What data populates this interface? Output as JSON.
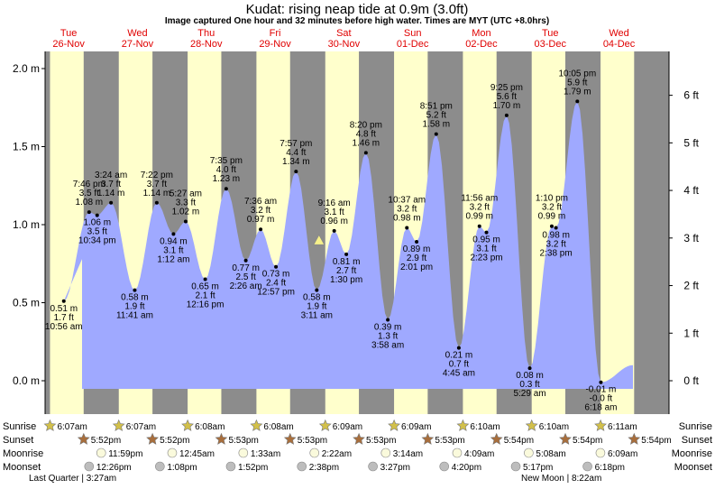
{
  "chart_data": {
    "type": "area",
    "title": "Kudat: rising  neap tide at 0.9m (3.0ft)",
    "subtitle": "Image captured One hour and 32 minutes before high water. Times are MYT (UTC +8.0hrs)",
    "ylabel_left_unit": "m",
    "ylabel_right_unit": "ft",
    "ylim_m": [
      -0.15,
      2.08
    ],
    "yticks_m": [
      "2.0 m",
      "1.5 m",
      "1.0 m",
      "0.5 m",
      "0.0 m"
    ],
    "yticks_ft": [
      "6 ft",
      "5 ft",
      "4 ft",
      "3 ft",
      "2 ft",
      "1 ft",
      "0 ft"
    ],
    "days": [
      {
        "name": "Tue",
        "date": "26-Nov"
      },
      {
        "name": "Wed",
        "date": "27-Nov"
      },
      {
        "name": "Thu",
        "date": "28-Nov"
      },
      {
        "name": "Fri",
        "date": "29-Nov"
      },
      {
        "name": "Sat",
        "date": "30-Nov"
      },
      {
        "name": "Sun",
        "date": "01-Dec"
      },
      {
        "name": "Mon",
        "date": "02-Dec"
      },
      {
        "name": "Tue",
        "date": "03-Dec"
      },
      {
        "name": "Wed",
        "date": "04-Dec"
      }
    ],
    "grid": true,
    "tides": [
      {
        "type": "low",
        "day": 0,
        "time": "10:56 am",
        "m": "0.51 m",
        "ft": "1.7 ft",
        "val": 0.51
      },
      {
        "type": "high",
        "day": 0,
        "time": "7:46 pm",
        "m": "1.08 m",
        "ft": "3.5 ft",
        "val": 1.08
      },
      {
        "type": "low",
        "day": 0,
        "time": "10:34 pm",
        "m": "1.06 m",
        "ft": "3.5 ft",
        "val": 1.06
      },
      {
        "type": "high",
        "day": 1,
        "time": "3:24 am",
        "m": "1.14 m",
        "ft": "3.7 ft",
        "val": 1.14
      },
      {
        "type": "low",
        "day": 1,
        "time": "11:41 am",
        "m": "0.58 m",
        "ft": "1.9 ft",
        "val": 0.58
      },
      {
        "type": "high",
        "day": 1,
        "time": "7:22 pm",
        "m": "1.14 m",
        "ft": "3.7 ft",
        "val": 1.14
      },
      {
        "type": "low",
        "day": 2,
        "time": "1:12 am",
        "m": "0.94 m",
        "ft": "3.1 ft",
        "val": 0.94
      },
      {
        "type": "high",
        "day": 2,
        "time": "5:27 am",
        "m": "1.02 m",
        "ft": "3.3 ft",
        "val": 1.02
      },
      {
        "type": "low",
        "day": 2,
        "time": "12:16 pm",
        "m": "0.65 m",
        "ft": "2.1 ft",
        "val": 0.65
      },
      {
        "type": "high",
        "day": 2,
        "time": "7:35 pm",
        "m": "1.23 m",
        "ft": "4.0 ft",
        "val": 1.23
      },
      {
        "type": "low",
        "day": 3,
        "time": "2:26 am",
        "m": "0.77 m",
        "ft": "2.5 ft",
        "val": 0.77
      },
      {
        "type": "high",
        "day": 3,
        "time": "7:36 am",
        "m": "0.97 m",
        "ft": "3.2 ft",
        "val": 0.97
      },
      {
        "type": "low",
        "day": 3,
        "time": "12:57 pm",
        "m": "0.73 m",
        "ft": "2.4 ft",
        "val": 0.73
      },
      {
        "type": "high",
        "day": 3,
        "time": "7:57 pm",
        "m": "1.34 m",
        "ft": "4.4 ft",
        "val": 1.34
      },
      {
        "type": "low",
        "day": 4,
        "time": "3:11 am",
        "m": "0.58 m",
        "ft": "1.9 ft",
        "val": 0.58
      },
      {
        "type": "high",
        "day": 4,
        "time": "9:16 am",
        "m": "0.96 m",
        "ft": "3.1 ft",
        "val": 0.96
      },
      {
        "type": "low",
        "day": 4,
        "time": "1:30 pm",
        "m": "0.81 m",
        "ft": "2.7 ft",
        "val": 0.81
      },
      {
        "type": "high",
        "day": 4,
        "time": "8:20 pm",
        "m": "1.46 m",
        "ft": "4.8 ft",
        "val": 1.46
      },
      {
        "type": "low",
        "day": 5,
        "time": "3:58 am",
        "m": "0.39 m",
        "ft": "1.3 ft",
        "val": 0.39
      },
      {
        "type": "high",
        "day": 5,
        "time": "10:37 am",
        "m": "0.98 m",
        "ft": "3.2 ft",
        "val": 0.98
      },
      {
        "type": "low",
        "day": 5,
        "time": "2:01 pm",
        "m": "0.89 m",
        "ft": "2.9 ft",
        "val": 0.89
      },
      {
        "type": "high",
        "day": 5,
        "time": "8:51 pm",
        "m": "1.58 m",
        "ft": "5.2 ft",
        "val": 1.58
      },
      {
        "type": "low",
        "day": 6,
        "time": "4:45 am",
        "m": "0.21 m",
        "ft": "0.7 ft",
        "val": 0.21
      },
      {
        "type": "high",
        "day": 6,
        "time": "11:56 am",
        "m": "0.99 m",
        "ft": "3.2 ft",
        "val": 0.99
      },
      {
        "type": "low",
        "day": 6,
        "time": "2:23 pm",
        "m": "0.95 m",
        "ft": "3.1 ft",
        "val": 0.95
      },
      {
        "type": "high",
        "day": 6,
        "time": "9:25 pm",
        "m": "1.70 m",
        "ft": "5.6 ft",
        "val": 1.7
      },
      {
        "type": "low",
        "day": 7,
        "time": "5:29 am",
        "m": "0.08 m",
        "ft": "0.3 ft",
        "val": 0.08
      },
      {
        "type": "high",
        "day": 7,
        "time": "1:10 pm",
        "m": "0.99 m",
        "ft": "3.2 ft",
        "val": 0.99
      },
      {
        "type": "low",
        "day": 7,
        "time": "2:38 pm",
        "m": "0.98 m",
        "ft": "3.2 ft",
        "val": 0.98
      },
      {
        "type": "high",
        "day": 7,
        "time": "10:05 pm",
        "m": "1.79 m",
        "ft": "5.9 ft",
        "val": 1.79
      },
      {
        "type": "low",
        "day": 8,
        "time": "6:18 am",
        "m": "-0.01 m",
        "ft": "-0.0 ft",
        "val": -0.01
      }
    ],
    "current_level_m": 0.9
  },
  "footer": {
    "row_labels": {
      "sunrise": "Sunrise",
      "sunset": "Sunset",
      "moonrise": "Moonrise",
      "moonset": "Moonset"
    },
    "sunrise": [
      "6:07am",
      "6:07am",
      "6:08am",
      "6:08am",
      "6:09am",
      "6:09am",
      "6:10am",
      "6:10am",
      "6:11am"
    ],
    "sunset": [
      "5:52pm",
      "5:52pm",
      "5:53pm",
      "5:53pm",
      "5:53pm",
      "5:53pm",
      "5:54pm",
      "5:54pm",
      "5:54pm"
    ],
    "moonrise": [
      "11:59pm",
      "12:45am",
      "1:33am",
      "2:22am",
      "3:14am",
      "4:09am",
      "5:08am",
      "6:09am"
    ],
    "moonset": [
      "12:26pm",
      "1:08pm",
      "1:52pm",
      "2:38pm",
      "3:27pm",
      "4:20pm",
      "5:17pm",
      "6:18pm"
    ],
    "moon_phases": [
      "Last Quarter | 3:27am",
      "New Moon | 8:22am"
    ]
  },
  "colors": {
    "night": "#8c8c8c",
    "day": "#ffffcc",
    "water": "#9fa9ff",
    "day_label": "#e00000",
    "sun": "#d2c04a",
    "sunset": "#a86e3c"
  }
}
